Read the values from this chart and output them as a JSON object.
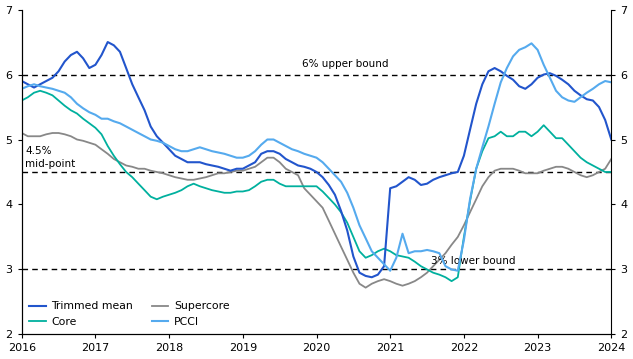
{
  "ylim": [
    2,
    7
  ],
  "yticks": [
    2,
    3,
    4,
    5,
    6,
    7
  ],
  "hlines": [
    3.0,
    4.5,
    6.0
  ],
  "colors": {
    "trimmed_mean": "#2255cc",
    "core": "#00b09e",
    "supercore": "#888888",
    "pcci": "#55aaee"
  },
  "xticks": [
    2016,
    2017,
    2018,
    2019,
    2020,
    2021,
    2022,
    2023,
    2024
  ],
  "trimmed_mean_dates": [
    2016.0,
    2016.083,
    2016.167,
    2016.25,
    2016.333,
    2016.417,
    2016.5,
    2016.583,
    2016.667,
    2016.75,
    2016.833,
    2016.917,
    2017.0,
    2017.083,
    2017.167,
    2017.25,
    2017.333,
    2017.417,
    2017.5,
    2017.583,
    2017.667,
    2017.75,
    2017.833,
    2017.917,
    2018.0,
    2018.083,
    2018.167,
    2018.25,
    2018.333,
    2018.417,
    2018.5,
    2018.583,
    2018.667,
    2018.75,
    2018.833,
    2018.917,
    2019.0,
    2019.083,
    2019.167,
    2019.25,
    2019.333,
    2019.417,
    2019.5,
    2019.583,
    2019.667,
    2019.75,
    2019.833,
    2019.917,
    2020.0,
    2020.083,
    2020.167,
    2020.25,
    2020.333,
    2020.417,
    2020.5,
    2020.583,
    2020.667,
    2020.75,
    2020.833,
    2020.917,
    2021.0,
    2021.083,
    2021.167,
    2021.25,
    2021.333,
    2021.417,
    2021.5,
    2021.583,
    2021.667,
    2021.75,
    2021.833,
    2021.917,
    2022.0,
    2022.083,
    2022.167,
    2022.25,
    2022.333,
    2022.417,
    2022.5,
    2022.583,
    2022.667,
    2022.75,
    2022.833,
    2022.917,
    2023.0,
    2023.083,
    2023.167,
    2023.25,
    2023.333,
    2023.417,
    2023.5,
    2023.583,
    2023.667,
    2023.75,
    2023.833,
    2023.917,
    2024.0
  ],
  "trimmed_mean_values": [
    5.9,
    5.85,
    5.8,
    5.85,
    5.9,
    5.95,
    6.05,
    6.2,
    6.3,
    6.35,
    6.25,
    6.1,
    6.15,
    6.3,
    6.5,
    6.45,
    6.35,
    6.1,
    5.85,
    5.65,
    5.45,
    5.2,
    5.05,
    4.95,
    4.85,
    4.75,
    4.7,
    4.65,
    4.65,
    4.65,
    4.62,
    4.6,
    4.58,
    4.55,
    4.52,
    4.55,
    4.55,
    4.6,
    4.65,
    4.78,
    4.82,
    4.82,
    4.78,
    4.7,
    4.65,
    4.6,
    4.58,
    4.55,
    4.5,
    4.42,
    4.3,
    4.15,
    3.9,
    3.6,
    3.2,
    2.95,
    2.9,
    2.88,
    2.92,
    3.05,
    4.25,
    4.28,
    4.35,
    4.42,
    4.38,
    4.3,
    4.32,
    4.38,
    4.42,
    4.45,
    4.48,
    4.5,
    4.75,
    5.15,
    5.55,
    5.85,
    6.05,
    6.1,
    6.05,
    5.98,
    5.92,
    5.82,
    5.78,
    5.85,
    5.95,
    6.0,
    6.02,
    5.98,
    5.92,
    5.85,
    5.75,
    5.68,
    5.62,
    5.6,
    5.5,
    5.3,
    5.0
  ],
  "core_dates": [
    2016.0,
    2016.083,
    2016.167,
    2016.25,
    2016.333,
    2016.417,
    2016.5,
    2016.583,
    2016.667,
    2016.75,
    2016.833,
    2016.917,
    2017.0,
    2017.083,
    2017.167,
    2017.25,
    2017.333,
    2017.417,
    2017.5,
    2017.583,
    2017.667,
    2017.75,
    2017.833,
    2017.917,
    2018.0,
    2018.083,
    2018.167,
    2018.25,
    2018.333,
    2018.417,
    2018.5,
    2018.583,
    2018.667,
    2018.75,
    2018.833,
    2018.917,
    2019.0,
    2019.083,
    2019.167,
    2019.25,
    2019.333,
    2019.417,
    2019.5,
    2019.583,
    2019.667,
    2019.75,
    2019.833,
    2019.917,
    2020.0,
    2020.083,
    2020.167,
    2020.25,
    2020.333,
    2020.417,
    2020.5,
    2020.583,
    2020.667,
    2020.75,
    2020.833,
    2020.917,
    2021.0,
    2021.083,
    2021.167,
    2021.25,
    2021.333,
    2021.417,
    2021.5,
    2021.583,
    2021.667,
    2021.75,
    2021.833,
    2021.917,
    2022.0,
    2022.083,
    2022.167,
    2022.25,
    2022.333,
    2022.417,
    2022.5,
    2022.583,
    2022.667,
    2022.75,
    2022.833,
    2022.917,
    2023.0,
    2023.083,
    2023.167,
    2023.25,
    2023.333,
    2023.417,
    2023.5,
    2023.583,
    2023.667,
    2023.75,
    2023.833,
    2023.917,
    2024.0
  ],
  "core_values": [
    5.6,
    5.65,
    5.72,
    5.75,
    5.72,
    5.68,
    5.6,
    5.52,
    5.45,
    5.4,
    5.32,
    5.25,
    5.18,
    5.08,
    4.9,
    4.75,
    4.62,
    4.5,
    4.42,
    4.32,
    4.22,
    4.12,
    4.08,
    4.12,
    4.15,
    4.18,
    4.22,
    4.28,
    4.32,
    4.28,
    4.25,
    4.22,
    4.2,
    4.18,
    4.18,
    4.2,
    4.2,
    4.22,
    4.28,
    4.35,
    4.38,
    4.38,
    4.32,
    4.28,
    4.28,
    4.28,
    4.28,
    4.28,
    4.28,
    4.2,
    4.1,
    4.0,
    3.88,
    3.72,
    3.5,
    3.28,
    3.18,
    3.22,
    3.28,
    3.32,
    3.28,
    3.22,
    3.2,
    3.18,
    3.12,
    3.05,
    3.0,
    2.95,
    2.92,
    2.88,
    2.82,
    2.88,
    3.5,
    4.05,
    4.55,
    4.82,
    5.02,
    5.05,
    5.12,
    5.05,
    5.05,
    5.12,
    5.12,
    5.05,
    5.12,
    5.22,
    5.12,
    5.02,
    5.02,
    4.92,
    4.82,
    4.72,
    4.65,
    4.6,
    4.55,
    4.5,
    4.5
  ],
  "supercore_dates": [
    2016.0,
    2016.083,
    2016.167,
    2016.25,
    2016.333,
    2016.417,
    2016.5,
    2016.583,
    2016.667,
    2016.75,
    2016.833,
    2016.917,
    2017.0,
    2017.083,
    2017.167,
    2017.25,
    2017.333,
    2017.417,
    2017.5,
    2017.583,
    2017.667,
    2017.75,
    2017.833,
    2017.917,
    2018.0,
    2018.083,
    2018.167,
    2018.25,
    2018.333,
    2018.417,
    2018.5,
    2018.583,
    2018.667,
    2018.75,
    2018.833,
    2018.917,
    2019.0,
    2019.083,
    2019.167,
    2019.25,
    2019.333,
    2019.417,
    2019.5,
    2019.583,
    2019.667,
    2019.75,
    2019.833,
    2019.917,
    2020.0,
    2020.083,
    2020.167,
    2020.25,
    2020.333,
    2020.417,
    2020.5,
    2020.583,
    2020.667,
    2020.75,
    2020.833,
    2020.917,
    2021.0,
    2021.083,
    2021.167,
    2021.25,
    2021.333,
    2021.417,
    2021.5,
    2021.583,
    2021.667,
    2021.75,
    2021.833,
    2021.917,
    2022.0,
    2022.083,
    2022.167,
    2022.25,
    2022.333,
    2022.417,
    2022.5,
    2022.583,
    2022.667,
    2022.75,
    2022.833,
    2022.917,
    2023.0,
    2023.083,
    2023.167,
    2023.25,
    2023.333,
    2023.417,
    2023.5,
    2023.583,
    2023.667,
    2023.75,
    2023.833,
    2023.917,
    2024.0
  ],
  "supercore_values": [
    5.1,
    5.05,
    5.05,
    5.05,
    5.08,
    5.1,
    5.1,
    5.08,
    5.05,
    5.0,
    4.98,
    4.95,
    4.92,
    4.85,
    4.78,
    4.7,
    4.65,
    4.6,
    4.58,
    4.55,
    4.55,
    4.52,
    4.5,
    4.48,
    4.45,
    4.42,
    4.4,
    4.38,
    4.38,
    4.4,
    4.42,
    4.45,
    4.48,
    4.48,
    4.5,
    4.52,
    4.52,
    4.55,
    4.58,
    4.65,
    4.72,
    4.72,
    4.65,
    4.55,
    4.5,
    4.45,
    4.25,
    4.15,
    4.05,
    3.95,
    3.75,
    3.55,
    3.35,
    3.15,
    2.95,
    2.78,
    2.72,
    2.78,
    2.82,
    2.85,
    2.82,
    2.78,
    2.75,
    2.78,
    2.82,
    2.88,
    2.95,
    3.05,
    3.15,
    3.25,
    3.38,
    3.5,
    3.68,
    3.88,
    4.08,
    4.28,
    4.42,
    4.52,
    4.55,
    4.55,
    4.55,
    4.52,
    4.48,
    4.48,
    4.48,
    4.52,
    4.55,
    4.58,
    4.58,
    4.55,
    4.5,
    4.45,
    4.42,
    4.45,
    4.5,
    4.55,
    4.7
  ],
  "pcci_dates": [
    2016.0,
    2016.083,
    2016.167,
    2016.25,
    2016.333,
    2016.417,
    2016.5,
    2016.583,
    2016.667,
    2016.75,
    2016.833,
    2016.917,
    2017.0,
    2017.083,
    2017.167,
    2017.25,
    2017.333,
    2017.417,
    2017.5,
    2017.583,
    2017.667,
    2017.75,
    2017.833,
    2017.917,
    2018.0,
    2018.083,
    2018.167,
    2018.25,
    2018.333,
    2018.417,
    2018.5,
    2018.583,
    2018.667,
    2018.75,
    2018.833,
    2018.917,
    2019.0,
    2019.083,
    2019.167,
    2019.25,
    2019.333,
    2019.417,
    2019.5,
    2019.583,
    2019.667,
    2019.75,
    2019.833,
    2019.917,
    2020.0,
    2020.083,
    2020.167,
    2020.25,
    2020.333,
    2020.417,
    2020.5,
    2020.583,
    2020.667,
    2020.75,
    2020.833,
    2020.917,
    2021.0,
    2021.083,
    2021.167,
    2021.25,
    2021.333,
    2021.417,
    2021.5,
    2021.583,
    2021.667,
    2021.75,
    2021.833,
    2021.917,
    2022.0,
    2022.083,
    2022.167,
    2022.25,
    2022.333,
    2022.417,
    2022.5,
    2022.583,
    2022.667,
    2022.75,
    2022.833,
    2022.917,
    2023.0,
    2023.083,
    2023.167,
    2023.25,
    2023.333,
    2023.417,
    2023.5,
    2023.583,
    2023.667,
    2023.75,
    2023.833,
    2023.917,
    2024.0
  ],
  "pcci_values": [
    5.78,
    5.82,
    5.85,
    5.82,
    5.8,
    5.78,
    5.75,
    5.72,
    5.65,
    5.55,
    5.48,
    5.42,
    5.38,
    5.32,
    5.32,
    5.28,
    5.25,
    5.2,
    5.15,
    5.1,
    5.05,
    5.0,
    4.98,
    4.95,
    4.9,
    4.85,
    4.82,
    4.82,
    4.85,
    4.88,
    4.85,
    4.82,
    4.8,
    4.78,
    4.75,
    4.72,
    4.72,
    4.75,
    4.82,
    4.92,
    5.0,
    5.0,
    4.95,
    4.9,
    4.85,
    4.82,
    4.78,
    4.75,
    4.72,
    4.65,
    4.55,
    4.45,
    4.35,
    4.18,
    3.95,
    3.68,
    3.48,
    3.28,
    3.18,
    3.08,
    2.98,
    3.18,
    3.55,
    3.25,
    3.28,
    3.28,
    3.3,
    3.28,
    3.25,
    3.05,
    3.0,
    2.98,
    3.45,
    4.08,
    4.55,
    4.88,
    5.2,
    5.55,
    5.88,
    6.1,
    6.28,
    6.38,
    6.42,
    6.48,
    6.38,
    6.15,
    5.95,
    5.75,
    5.65,
    5.6,
    5.58,
    5.65,
    5.72,
    5.78,
    5.85,
    5.9,
    5.88
  ]
}
